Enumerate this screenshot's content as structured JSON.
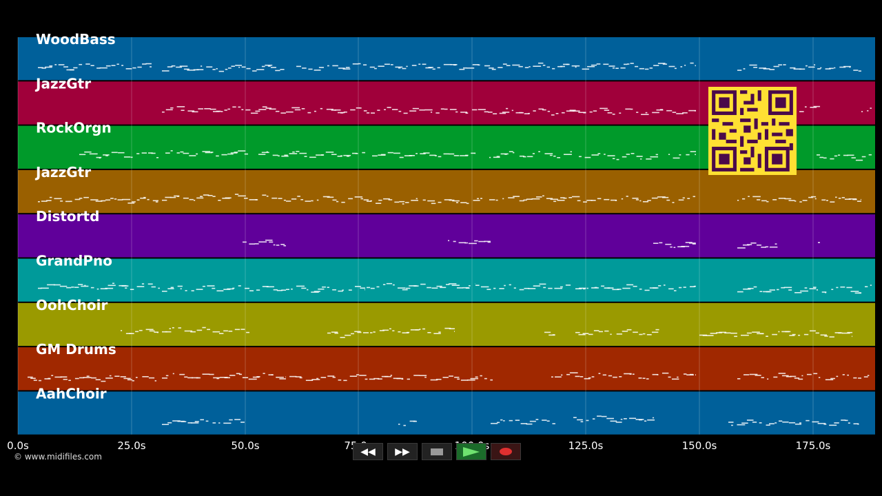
{
  "tracks": [
    {
      "name": "WoodBass",
      "color": "#00609a"
    },
    {
      "name": "JazzGtr",
      "color": "#a0003a"
    },
    {
      "name": "RockOrgn",
      "color": "#009a2a"
    },
    {
      "name": "JazzGtr",
      "color": "#9a6000"
    },
    {
      "name": "Distortd",
      "color": "#60009a"
    },
    {
      "name": "GrandPno",
      "color": "#009a9a"
    },
    {
      "name": "OohChoir",
      "color": "#9a9a00"
    },
    {
      "name": "GM Drums",
      "color": "#a02800"
    },
    {
      "name": "AahChoir",
      "color": "#00609a"
    }
  ],
  "timeline": {
    "ticks": [
      "0.0s",
      "25.0s",
      "50.0s",
      "75.0s",
      "100.0s",
      "125.0s",
      "150.0s",
      "175.0s"
    ]
  },
  "copyright": "© www.midifiles.com",
  "transport": {
    "rewind_icon": "rewind-icon",
    "fast_forward_icon": "fast-forward-icon",
    "stop_icon": "stop-icon",
    "play_icon": "play-icon",
    "record_icon": "record-icon"
  },
  "qr_code": {
    "icon": "qr-code-icon",
    "color": "#ffe033"
  }
}
